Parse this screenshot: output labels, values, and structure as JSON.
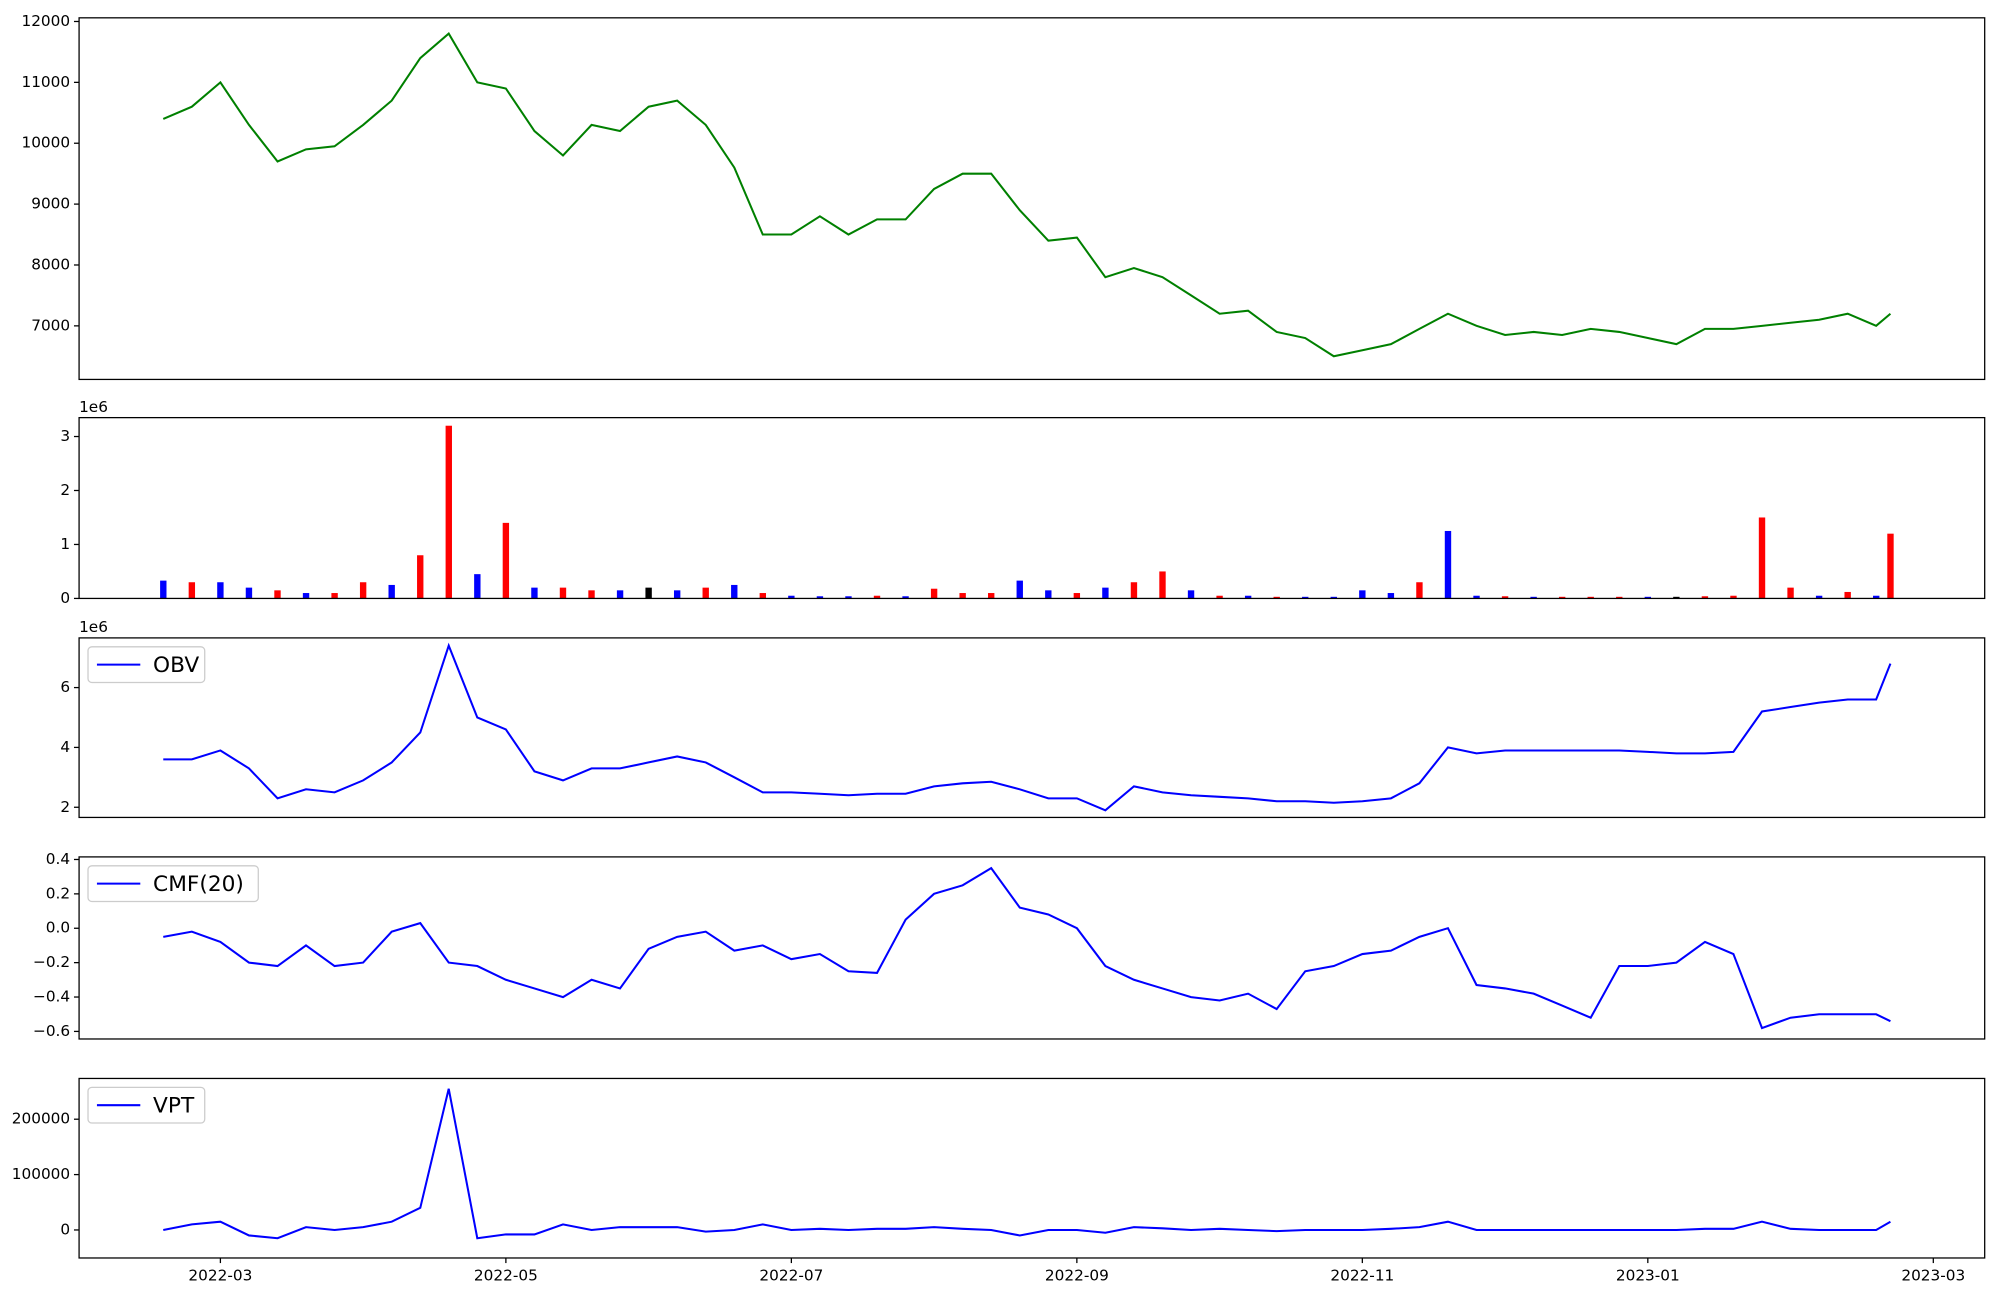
{
  "chart_data": [
    {
      "type": "line",
      "ylim": [
        6120,
        12060
      ],
      "yticks": [
        7000,
        8000,
        9000,
        10000,
        11000,
        12000
      ],
      "series": [
        {
          "color": "green",
          "values": [
            10400,
            10600,
            11000,
            10300,
            9700,
            9900,
            9950,
            10300,
            10700,
            11400,
            11800,
            11000,
            10900,
            10200,
            9800,
            10300,
            10200,
            10600,
            10700,
            10300,
            9600,
            8500,
            8500,
            8800,
            8500,
            8750,
            8750,
            9250,
            9500,
            9500,
            8900,
            8400,
            8450,
            7800,
            7950,
            7800,
            7500,
            7200,
            7250,
            6900,
            6800,
            6500,
            6600,
            6700,
            6950,
            7200,
            7000,
            6850,
            6900,
            6850,
            6950,
            6900,
            6800,
            6700,
            6950,
            6950,
            7000,
            7050,
            7100,
            7200,
            7000,
            7200
          ]
        }
      ]
    },
    {
      "type": "bar",
      "ylim": [
        0,
        3.35
      ],
      "yticks": [
        0,
        1,
        2,
        3
      ],
      "offset_label": "1e6",
      "series": [
        {
          "values": [
            0.33,
            0.3,
            0.3,
            0.2,
            0.15,
            0.1,
            0.1,
            0.3,
            0.25,
            0.8,
            3.2,
            0.45,
            1.4,
            0.2,
            0.2,
            0.15,
            0.15,
            0.2,
            0.15,
            0.2,
            0.25,
            0.1,
            0.05,
            0.04,
            0.04,
            0.05,
            0.04,
            0.18,
            0.1,
            0.1,
            0.33,
            0.15,
            0.1,
            0.2,
            0.3,
            0.5,
            0.15,
            0.05,
            0.05,
            0.03,
            0.03,
            0.03,
            0.15,
            0.1,
            0.3,
            1.25,
            0.05,
            0.04,
            0.03,
            0.03,
            0.03,
            0.03,
            0.03,
            0.03,
            0.04,
            0.05,
            1.5,
            0.2,
            0.05,
            0.12,
            0.05,
            1.2
          ],
          "colors": [
            "blue",
            "red",
            "blue",
            "blue",
            "red",
            "blue",
            "red",
            "red",
            "blue",
            "red",
            "red",
            "blue",
            "red",
            "blue",
            "red",
            "red",
            "blue",
            "black",
            "blue",
            "red",
            "blue",
            "red",
            "blue",
            "blue",
            "blue",
            "red",
            "blue",
            "red",
            "red",
            "red",
            "blue",
            "blue",
            "red",
            "blue",
            "red",
            "red",
            "blue",
            "red",
            "blue",
            "red",
            "blue",
            "blue",
            "blue",
            "blue",
            "red",
            "blue",
            "blue",
            "red",
            "blue",
            "red",
            "red",
            "red",
            "blue",
            "black",
            "red",
            "red",
            "red",
            "red",
            "blue",
            "red",
            "blue",
            "red"
          ]
        }
      ]
    },
    {
      "type": "line",
      "ylim": [
        1.66,
        7.66
      ],
      "yticks": [
        2,
        4,
        6
      ],
      "offset_label": "1e6",
      "legend": "upper left",
      "series": [
        {
          "name": "OBV",
          "color": "blue",
          "values": [
            3.6,
            3.6,
            3.9,
            3.3,
            2.3,
            2.6,
            2.5,
            2.9,
            3.5,
            4.5,
            7.4,
            5.0,
            4.6,
            3.2,
            2.9,
            3.3,
            3.3,
            3.5,
            3.7,
            3.5,
            3.0,
            2.5,
            2.5,
            2.45,
            2.4,
            2.45,
            2.45,
            2.7,
            2.8,
            2.85,
            2.6,
            2.3,
            2.3,
            1.9,
            2.7,
            2.5,
            2.4,
            2.35,
            2.3,
            2.2,
            2.2,
            2.15,
            2.2,
            2.3,
            2.8,
            4.0,
            3.8,
            3.9,
            3.9,
            3.9,
            3.9,
            3.9,
            3.85,
            3.8,
            3.8,
            3.85,
            5.2,
            5.35,
            5.5,
            5.6,
            5.6,
            6.8
          ]
        }
      ]
    },
    {
      "type": "line",
      "ylim": [
        -0.644,
        0.415
      ],
      "yticks": [
        0.4,
        0.2,
        {
          "value": 0,
          "label": "0.0"
        },
        {
          "value": -0.2,
          "label": "−0.2"
        },
        {
          "value": -0.4,
          "label": "−0.4"
        },
        {
          "value": -0.6,
          "label": "−0.6"
        }
      ],
      "legend": "upper left",
      "series": [
        {
          "name": "CMF(20)",
          "color": "blue",
          "values": [
            -0.05,
            -0.02,
            -0.08,
            -0.2,
            -0.22,
            -0.1,
            -0.22,
            -0.2,
            -0.02,
            0.03,
            -0.2,
            -0.22,
            -0.3,
            -0.35,
            -0.4,
            -0.3,
            -0.35,
            -0.12,
            -0.05,
            -0.02,
            -0.13,
            -0.1,
            -0.18,
            -0.15,
            -0.25,
            -0.26,
            0.05,
            0.2,
            0.25,
            0.35,
            0.12,
            0.08,
            0.0,
            -0.22,
            -0.3,
            -0.35,
            -0.4,
            -0.42,
            -0.38,
            -0.47,
            -0.25,
            -0.22,
            -0.15,
            -0.13,
            -0.05,
            0.0,
            -0.33,
            -0.35,
            -0.38,
            -0.45,
            -0.52,
            -0.22,
            -0.22,
            -0.2,
            -0.08,
            -0.15,
            -0.58,
            -0.52,
            -0.5,
            -0.5,
            -0.5,
            -0.54
          ]
        }
      ]
    },
    {
      "type": "line",
      "ylim": [
        -50600,
        273600
      ],
      "yticks": [
        0,
        100000,
        200000
      ],
      "legend": "upper left",
      "x": [
        2.6,
        2.8,
        3.0,
        3.2,
        3.4,
        3.6,
        3.8,
        4.0,
        4.2,
        4.4,
        4.6,
        4.8,
        5.0,
        5.2,
        5.4,
        5.6,
        5.8,
        6.0,
        6.2,
        6.4,
        6.6,
        6.8,
        7.0,
        7.2,
        7.4,
        7.6,
        7.8,
        8.0,
        8.2,
        8.4,
        8.6,
        8.8,
        9.0,
        9.2,
        9.4,
        9.6,
        9.8,
        10.0,
        10.2,
        10.4,
        10.6,
        10.8,
        11.0,
        11.2,
        11.4,
        11.6,
        11.8,
        12.0,
        12.2,
        12.4,
        12.6,
        12.8,
        13.0,
        13.2,
        13.4,
        13.6,
        13.8,
        14.0,
        14.2,
        14.4,
        14.6,
        14.7
      ],
      "xlim": [
        2.01,
        15.36
      ],
      "xticks": [
        {
          "value": 3,
          "label": "2022-03"
        },
        {
          "value": 5,
          "label": "2022-05"
        },
        {
          "value": 7,
          "label": "2022-07"
        },
        {
          "value": 9,
          "label": "2022-09"
        },
        {
          "value": 11,
          "label": "2022-11"
        },
        {
          "value": 13,
          "label": "2023-01"
        },
        {
          "value": 15,
          "label": "2023-03"
        }
      ],
      "series": [
        {
          "name": "VPT",
          "color": "blue",
          "values": [
            0,
            10000,
            15000,
            -10000,
            -15000,
            5000,
            0,
            5000,
            15000,
            40000,
            255000,
            -15000,
            -8000,
            -8000,
            10000,
            0,
            5000,
            5000,
            5000,
            -3000,
            0,
            10000,
            0,
            2000,
            0,
            2000,
            2000,
            5000,
            2000,
            0,
            -10000,
            0,
            0,
            -5000,
            5000,
            3000,
            0,
            2000,
            0,
            -2000,
            0,
            0,
            0,
            2000,
            5000,
            15000,
            0,
            0,
            0,
            0,
            0,
            0,
            0,
            0,
            2000,
            2000,
            15000,
            2000,
            0,
            0,
            0,
            15000
          ]
        }
      ]
    }
  ]
}
